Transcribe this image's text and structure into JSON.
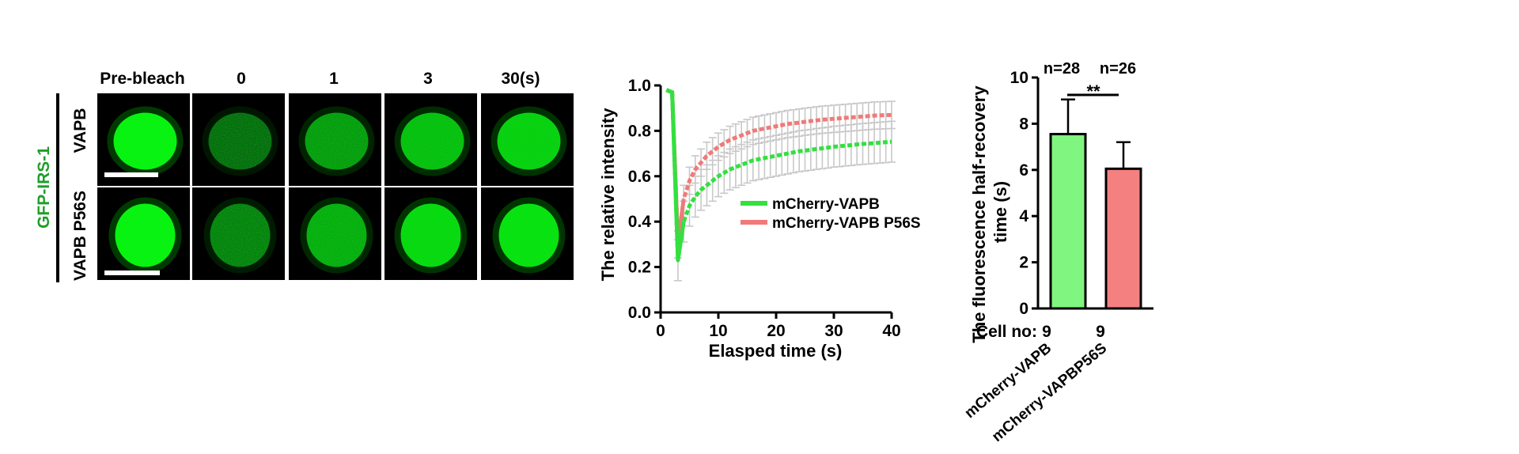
{
  "panel_a": {
    "group_label": "GFP-IRS-1",
    "group_color": "#1f9e2a",
    "timepoints": [
      "Pre-bleach",
      "0",
      "1",
      "3",
      "30(s)"
    ],
    "rows": [
      {
        "label": "VAPB",
        "intensity": [
          0.95,
          0.18,
          0.45,
          0.65,
          0.75
        ]
      },
      {
        "label": "VAPB P56S",
        "intensity": [
          0.95,
          0.3,
          0.55,
          0.8,
          0.85
        ]
      }
    ]
  },
  "chart_data": [
    {
      "type": "line",
      "xlabel": "Elasped time (s)",
      "ylabel": "The relative intensity",
      "xlim": [
        0,
        40
      ],
      "ylim": [
        0,
        1.0
      ],
      "xticks": [
        "0",
        "10",
        "20",
        "30",
        "40"
      ],
      "yticks": [
        "0.0",
        "0.2",
        "0.4",
        "0.6",
        "0.8",
        "1.0"
      ],
      "legend_position": "center-right",
      "x": [
        1,
        2,
        3,
        4,
        5,
        6,
        7,
        8,
        9,
        10,
        11,
        12,
        13,
        14,
        15,
        16,
        17,
        18,
        19,
        20,
        21,
        22,
        23,
        24,
        25,
        26,
        27,
        28,
        29,
        30,
        31,
        32,
        33,
        34,
        35,
        36,
        37,
        38,
        39,
        40
      ],
      "series": [
        {
          "name": "mCherry-VAPB",
          "color": "#33e03f",
          "values": [
            0.98,
            0.97,
            0.23,
            0.4,
            0.47,
            0.51,
            0.54,
            0.56,
            0.58,
            0.6,
            0.615,
            0.63,
            0.64,
            0.65,
            0.66,
            0.67,
            0.675,
            0.68,
            0.685,
            0.69,
            0.695,
            0.7,
            0.705,
            0.71,
            0.713,
            0.716,
            0.72,
            0.723,
            0.726,
            0.73,
            0.732,
            0.735,
            0.737,
            0.74,
            0.742,
            0.744,
            0.746,
            0.748,
            0.75,
            0.752
          ],
          "error": 0.09
        },
        {
          "name": "mCherry-VAPB P56S",
          "color": "#f07a7a",
          "values": [
            0.98,
            0.97,
            0.3,
            0.5,
            0.58,
            0.63,
            0.66,
            0.69,
            0.71,
            0.73,
            0.745,
            0.76,
            0.77,
            0.78,
            0.79,
            0.8,
            0.805,
            0.81,
            0.815,
            0.82,
            0.825,
            0.83,
            0.833,
            0.836,
            0.84,
            0.843,
            0.846,
            0.849,
            0.851,
            0.853,
            0.855,
            0.857,
            0.859,
            0.861,
            0.863,
            0.865,
            0.867,
            0.868,
            0.869,
            0.87
          ],
          "error": 0.06
        }
      ]
    },
    {
      "type": "bar",
      "ylabel": "The fluorescence half-recovery time (s)",
      "ylim": [
        0,
        10
      ],
      "yticks": [
        "0",
        "2",
        "4",
        "6",
        "8",
        "10"
      ],
      "categories": [
        "mCherry-VAPB",
        "mCherry-VAPBP56S"
      ],
      "values": [
        7.55,
        6.05
      ],
      "errors": [
        1.5,
        1.15
      ],
      "colors": [
        "#80f57f",
        "#f58080"
      ],
      "n_labels": [
        "n=28",
        "n=26"
      ],
      "cell_no_label": "Cell no:",
      "cell_no": [
        "9",
        "9"
      ],
      "significance": "**"
    }
  ]
}
